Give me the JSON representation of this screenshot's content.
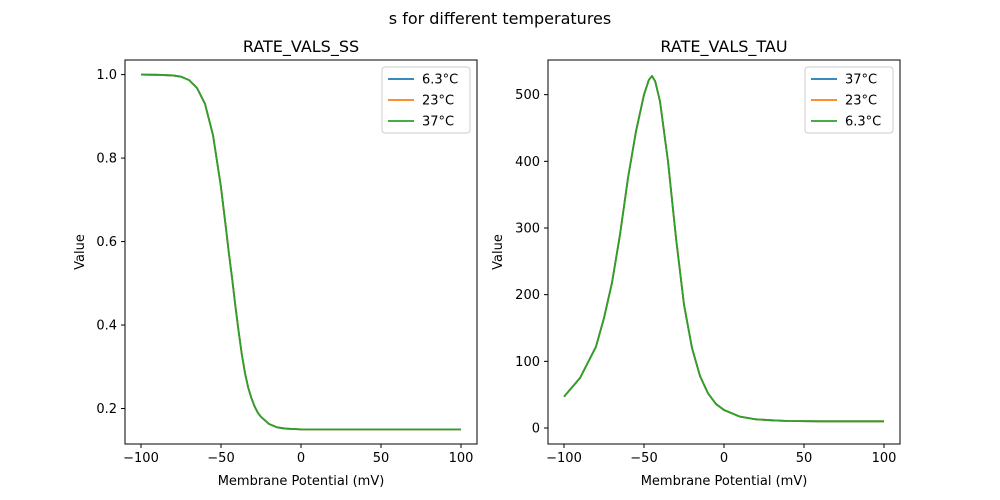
{
  "figure": {
    "suptitle": "s for different temperatures"
  },
  "chart_data": [
    {
      "type": "line",
      "title": "RATE_VALS_SS",
      "xlabel": "Membrane Potential (mV)",
      "ylabel": "Value",
      "xlim": [
        -110,
        110
      ],
      "ylim": [
        0.115,
        1.035
      ],
      "xticks": [
        -100,
        -50,
        0,
        50,
        100
      ],
      "xtick_labels": [
        "−100",
        "−50",
        "0",
        "50",
        "100"
      ],
      "yticks": [
        0.2,
        0.4,
        0.6,
        0.8,
        1.0
      ],
      "ytick_labels": [
        "0.2",
        "0.4",
        "0.6",
        "0.8",
        "1.0"
      ],
      "grid": false,
      "legend_position": "top-right",
      "x": [
        -100,
        -90,
        -80,
        -75,
        -70,
        -65,
        -60,
        -55,
        -50,
        -47,
        -45,
        -43,
        -41,
        -39,
        -37,
        -35,
        -33,
        -31,
        -29,
        -27,
        -25,
        -20,
        -15,
        -10,
        -5,
        0,
        10,
        20,
        40,
        60,
        80,
        100
      ],
      "series": [
        {
          "name": "6.3°C",
          "color": "#1f77b4",
          "values": [
            1.0,
            0.9995,
            0.998,
            0.995,
            0.987,
            0.968,
            0.93,
            0.855,
            0.73,
            0.635,
            0.57,
            0.51,
            0.445,
            0.385,
            0.33,
            0.285,
            0.25,
            0.225,
            0.205,
            0.19,
            0.18,
            0.163,
            0.155,
            0.152,
            0.151,
            0.15,
            0.15,
            0.15,
            0.15,
            0.15,
            0.15,
            0.15
          ]
        },
        {
          "name": "23°C",
          "color": "#ff7f0e",
          "values": [
            1.0,
            0.9995,
            0.998,
            0.995,
            0.987,
            0.968,
            0.93,
            0.855,
            0.73,
            0.635,
            0.57,
            0.51,
            0.445,
            0.385,
            0.33,
            0.285,
            0.25,
            0.225,
            0.205,
            0.19,
            0.18,
            0.163,
            0.155,
            0.152,
            0.151,
            0.15,
            0.15,
            0.15,
            0.15,
            0.15,
            0.15,
            0.15
          ]
        },
        {
          "name": "37°C",
          "color": "#2ca02c",
          "values": [
            1.0,
            0.9995,
            0.998,
            0.995,
            0.987,
            0.968,
            0.93,
            0.855,
            0.73,
            0.635,
            0.57,
            0.51,
            0.445,
            0.385,
            0.33,
            0.285,
            0.25,
            0.225,
            0.205,
            0.19,
            0.18,
            0.163,
            0.155,
            0.152,
            0.151,
            0.15,
            0.15,
            0.15,
            0.15,
            0.15,
            0.15,
            0.15
          ]
        }
      ]
    },
    {
      "type": "line",
      "title": "RATE_VALS_TAU",
      "xlabel": "Membrane Potential (mV)",
      "ylabel": "Value",
      "xlim": [
        -110,
        110
      ],
      "ylim": [
        -24,
        552
      ],
      "xticks": [
        -100,
        -50,
        0,
        50,
        100
      ],
      "xtick_labels": [
        "−100",
        "−50",
        "0",
        "50",
        "100"
      ],
      "yticks": [
        0,
        100,
        200,
        300,
        400,
        500
      ],
      "ytick_labels": [
        "0",
        "100",
        "200",
        "300",
        "400",
        "500"
      ],
      "grid": false,
      "legend_position": "top-right",
      "x": [
        -100,
        -90,
        -80,
        -75,
        -70,
        -65,
        -60,
        -55,
        -50,
        -47,
        -45,
        -43,
        -40,
        -35,
        -30,
        -25,
        -20,
        -15,
        -10,
        -5,
        0,
        10,
        20,
        30,
        40,
        60,
        80,
        100
      ],
      "series": [
        {
          "name": "37°C",
          "color": "#1f77b4",
          "values": [
            47,
            75,
            122,
            165,
            218,
            290,
            375,
            445,
            500,
            522,
            528,
            520,
            490,
            400,
            285,
            185,
            120,
            78,
            52,
            36,
            27,
            17,
            13,
            11.5,
            10.5,
            10,
            10,
            10
          ]
        },
        {
          "name": "23°C",
          "color": "#ff7f0e",
          "values": [
            47,
            75,
            122,
            165,
            218,
            290,
            375,
            445,
            500,
            522,
            528,
            520,
            490,
            400,
            285,
            185,
            120,
            78,
            52,
            36,
            27,
            17,
            13,
            11.5,
            10.5,
            10,
            10,
            10
          ]
        },
        {
          "name": "6.3°C",
          "color": "#2ca02c",
          "values": [
            47,
            75,
            122,
            165,
            218,
            290,
            375,
            445,
            500,
            522,
            528,
            520,
            490,
            400,
            285,
            185,
            120,
            78,
            52,
            36,
            27,
            17,
            13,
            11.5,
            10.5,
            10,
            10,
            10
          ]
        }
      ]
    }
  ]
}
